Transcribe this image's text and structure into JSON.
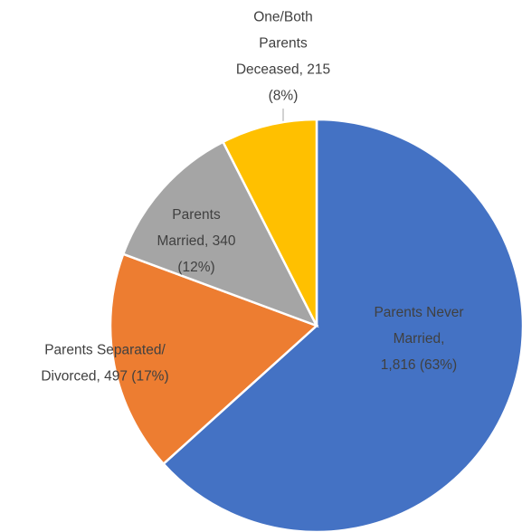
{
  "chart_data": {
    "type": "pie",
    "values": [
      1816,
      497,
      340,
      215
    ],
    "value_labels": [
      [
        "Parents Never",
        "Married,",
        "1,816 (63%)"
      ],
      [
        "Parents Separated/",
        "Divorced, 497 (17%)"
      ],
      [
        "Parents",
        "Married, 340",
        "(12%)"
      ],
      [
        "One/Both",
        "Parents",
        "Deceased, 215",
        "(8%)"
      ]
    ],
    "colors": [
      "#4472c4",
      "#ed7d31",
      "#a5a5a5",
      "#ffc000"
    ]
  }
}
